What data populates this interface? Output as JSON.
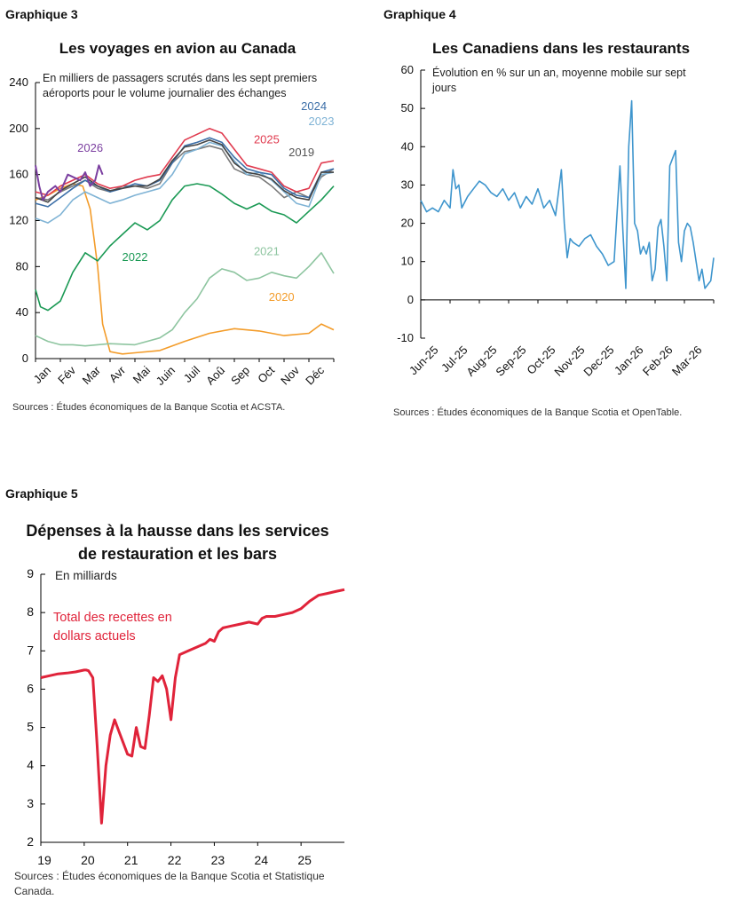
{
  "chart_data": [
    {
      "id": "g3",
      "type": "line",
      "figure_label": "Graphique 3",
      "title": "Les voyages en avion au Canada",
      "subtitle": "En milliers de passagers scrutés dans les sept premiers aéroports pour le volume journalier des échanges",
      "source": "Sources : Études économiques de la Banque Scotia et ACSTA.",
      "ylim": [
        0,
        240
      ],
      "yticks": [
        "0",
        "40",
        "80",
        "120",
        "160",
        "200",
        "240"
      ],
      "xlim": [
        0,
        12
      ],
      "xticks": [
        "Jan",
        "Fév",
        "Mar",
        "Avr",
        "Mai",
        "Juin",
        "Juil",
        "Aoû",
        "Sep",
        "Oct",
        "Nov",
        "Déc"
      ],
      "series": [
        {
          "name": "2020",
          "color": "#F39C2A",
          "x": [
            0,
            0.5,
            1,
            1.5,
            1.9,
            2.2,
            2.5,
            2.7,
            3,
            3.5,
            4,
            5,
            6,
            7,
            8,
            9,
            10,
            11,
            11.5,
            12
          ],
          "values": [
            138,
            142,
            148,
            152,
            150,
            130,
            80,
            30,
            6,
            4,
            5,
            7,
            15,
            22,
            26,
            24,
            20,
            22,
            30,
            25
          ]
        },
        {
          "name": "2021",
          "color": "#8EC5A0",
          "x": [
            0,
            0.5,
            1,
            1.5,
            2,
            2.5,
            3,
            4,
            5,
            5.5,
            6,
            6.5,
            7,
            7.5,
            8,
            8.5,
            9,
            9.5,
            10,
            10.5,
            11,
            11.5,
            12
          ],
          "values": [
            20,
            15,
            12,
            12,
            11,
            12,
            13,
            12,
            18,
            25,
            40,
            52,
            70,
            78,
            75,
            68,
            70,
            75,
            72,
            70,
            80,
            92,
            74
          ]
        },
        {
          "name": "2022",
          "color": "#1A9954",
          "x": [
            0,
            0.2,
            0.5,
            1,
            1.5,
            2,
            2.5,
            3,
            3.5,
            4,
            4.5,
            5,
            5.5,
            6,
            6.5,
            7,
            7.5,
            8,
            8.5,
            9,
            9.5,
            10,
            10.5,
            11,
            11.5,
            12
          ],
          "values": [
            60,
            45,
            42,
            50,
            75,
            92,
            85,
            98,
            108,
            118,
            112,
            120,
            138,
            150,
            152,
            150,
            143,
            135,
            130,
            135,
            128,
            125,
            118,
            128,
            138,
            150
          ]
        },
        {
          "name": "2019",
          "color": "#7A7A7A",
          "x": [
            0,
            0.5,
            1,
            1.5,
            2,
            2.5,
            3,
            3.5,
            4,
            4.5,
            5,
            5.5,
            6,
            6.5,
            7,
            7.5,
            8,
            8.5,
            9,
            9.5,
            10,
            10.5,
            11,
            11.5,
            12
          ],
          "values": [
            140,
            138,
            145,
            150,
            155,
            148,
            145,
            150,
            150,
            148,
            152,
            170,
            180,
            182,
            185,
            182,
            165,
            160,
            158,
            150,
            140,
            145,
            140,
            158,
            165
          ]
        },
        {
          "name": "2023",
          "color": "#7FB3D5",
          "x": [
            0,
            0.5,
            1,
            1.5,
            2,
            2.5,
            3,
            3.5,
            4,
            4.5,
            5,
            5.5,
            6,
            6.5,
            7,
            7.5,
            8,
            8.5,
            9,
            9.5,
            10,
            10.5,
            11,
            11.5,
            12
          ],
          "values": [
            122,
            118,
            125,
            138,
            145,
            140,
            135,
            138,
            142,
            145,
            148,
            160,
            178,
            182,
            188,
            185,
            172,
            160,
            162,
            155,
            145,
            135,
            132,
            160,
            162
          ]
        },
        {
          "name": "2024",
          "color": "#3C6FA8",
          "x": [
            0,
            0.5,
            1,
            1.5,
            2,
            2.5,
            3,
            3.5,
            4,
            4.5,
            5,
            5.5,
            6,
            6.5,
            7,
            7.5,
            8,
            8.5,
            9,
            9.5,
            10,
            10.5,
            11,
            11.5,
            12
          ],
          "values": [
            135,
            132,
            140,
            148,
            155,
            150,
            145,
            148,
            152,
            150,
            155,
            170,
            185,
            188,
            192,
            188,
            175,
            165,
            162,
            160,
            148,
            142,
            140,
            162,
            165
          ]
        },
        {
          "name": "2025",
          "color": "#E03A4E",
          "x": [
            0,
            0.5,
            1,
            1.5,
            2,
            2.5,
            3,
            3.5,
            4,
            4.5,
            5,
            5.5,
            6,
            6.5,
            7,
            7.5,
            8,
            8.5,
            9,
            9.5,
            10,
            10.5,
            11,
            11.5,
            12
          ],
          "values": [
            145,
            142,
            150,
            155,
            160,
            152,
            148,
            150,
            155,
            158,
            160,
            175,
            190,
            195,
            200,
            196,
            182,
            168,
            165,
            162,
            150,
            145,
            148,
            170,
            172
          ]
        },
        {
          "name": "",
          "color": "#444444",
          "x": [
            0,
            0.5,
            1,
            1.5,
            2,
            2.5,
            3,
            3.5,
            4,
            4.5,
            5,
            5.5,
            6,
            6.5,
            7,
            7.5,
            8,
            8.5,
            9,
            9.5,
            10,
            10.5,
            11,
            11.5,
            12
          ],
          "values": [
            140,
            136,
            146,
            152,
            158,
            150,
            146,
            148,
            150,
            150,
            156,
            172,
            184,
            186,
            190,
            186,
            170,
            162,
            160,
            156,
            146,
            140,
            138,
            162,
            162
          ]
        },
        {
          "name": "2026",
          "color": "#7B3FA0",
          "x": [
            0,
            0.15,
            0.3,
            0.5,
            0.8,
            1,
            1.3,
            1.5,
            1.8,
            2,
            2.2,
            2.4,
            2.55,
            2.7
          ],
          "values": [
            168,
            150,
            138,
            145,
            150,
            145,
            160,
            158,
            155,
            162,
            150,
            155,
            168,
            160
          ]
        }
      ],
      "annotations": [
        {
          "text": "2026",
          "x": 2.2,
          "y": 180,
          "color": "#7B3FA0"
        },
        {
          "text": "2024",
          "x": 11.2,
          "y": 216,
          "color": "#3C6FA8"
        },
        {
          "text": "2023",
          "x": 11.5,
          "y": 203,
          "color": "#7FB3D5"
        },
        {
          "text": "2025",
          "x": 9.3,
          "y": 187,
          "color": "#E03A4E"
        },
        {
          "text": "2019",
          "x": 10.7,
          "y": 176,
          "color": "#555555"
        },
        {
          "text": "2022",
          "x": 4.0,
          "y": 85,
          "color": "#1A9954"
        },
        {
          "text": "2021",
          "x": 9.3,
          "y": 90,
          "color": "#8EC5A0"
        },
        {
          "text": "2020",
          "x": 9.9,
          "y": 50,
          "color": "#F39C2A"
        }
      ]
    },
    {
      "id": "g4",
      "type": "line",
      "figure_label": "Graphique 4",
      "title": "Les Canadiens dans les restaurants",
      "subtitle": "Évolution en % sur un an, moyenne mobile sur sept jours",
      "source": "Sources : Études économiques de la Banque Scotia et OpenTable.",
      "ylim": [
        -10,
        60
      ],
      "yticks": [
        "-10",
        "0",
        "10",
        "20",
        "30",
        "40",
        "50",
        "60"
      ],
      "xlim": [
        0,
        10
      ],
      "xticks": [
        "Jun-25",
        "Jul-25",
        "Aug-25",
        "Sep-25",
        "Oct-25",
        "Nov-25",
        "Dec-25",
        "Jan-26",
        "Feb-26",
        "Mar-26"
      ],
      "series": [
        {
          "name": "",
          "color": "#3E95CD",
          "x": [
            0,
            0.2,
            0.4,
            0.6,
            0.8,
            1.0,
            1.1,
            1.2,
            1.3,
            1.4,
            1.6,
            1.8,
            2.0,
            2.2,
            2.4,
            2.6,
            2.8,
            3.0,
            3.2,
            3.4,
            3.6,
            3.8,
            4.0,
            4.2,
            4.4,
            4.6,
            4.8,
            4.9,
            5.0,
            5.1,
            5.2,
            5.4,
            5.6,
            5.8,
            6.0,
            6.2,
            6.4,
            6.6,
            6.8,
            6.9,
            7.0,
            7.1,
            7.2,
            7.3,
            7.4,
            7.5,
            7.6,
            7.7,
            7.8,
            7.9,
            8.0,
            8.1,
            8.2,
            8.3,
            8.4,
            8.5,
            8.6,
            8.7,
            8.8,
            8.9,
            9.0,
            9.1,
            9.2,
            9.3,
            9.4,
            9.5,
            9.6,
            9.7,
            9.8,
            9.9,
            10
          ],
          "values": [
            26,
            23,
            24,
            23,
            26,
            24,
            34,
            29,
            30,
            24,
            27,
            29,
            31,
            30,
            28,
            27,
            29,
            26,
            28,
            24,
            27,
            25,
            29,
            24,
            26,
            22,
            34,
            20,
            11,
            16,
            15,
            14,
            16,
            17,
            14,
            12,
            9,
            10,
            35,
            18,
            3,
            40,
            52,
            20,
            18,
            12,
            14,
            12,
            15,
            5,
            8,
            19,
            21,
            14,
            5,
            35,
            37,
            39,
            15,
            10,
            18,
            20,
            19,
            15,
            10,
            5,
            8,
            3,
            4,
            5,
            11
          ]
        }
      ]
    },
    {
      "id": "g5",
      "type": "line",
      "figure_label": "Graphique 5",
      "title": "Dépenses à la hausse dans les services de restauration et les bars",
      "subtitle": "En milliards",
      "source": "Sources : Études économiques de la Banque Scotia et Statistique Canada.",
      "ylim": [
        2,
        9
      ],
      "yticks": [
        "2",
        "3",
        "4",
        "5",
        "6",
        "7",
        "8",
        "9"
      ],
      "xlim": [
        0,
        7
      ],
      "xticks": [
        "19",
        "20",
        "21",
        "22",
        "23",
        "24",
        "25"
      ],
      "series": [
        {
          "name": "Total des recettes en dollars actuels",
          "color": "#E0233A",
          "x": [
            0,
            0.2,
            0.4,
            0.6,
            0.8,
            1.0,
            1.05,
            1.1,
            1.2,
            1.3,
            1.4,
            1.5,
            1.6,
            1.7,
            1.8,
            1.9,
            2.0,
            2.1,
            2.2,
            2.3,
            2.4,
            2.5,
            2.6,
            2.7,
            2.8,
            2.9,
            3.0,
            3.1,
            3.2,
            3.4,
            3.6,
            3.8,
            3.9,
            4.0,
            4.1,
            4.2,
            4.4,
            4.6,
            4.8,
            5.0,
            5.1,
            5.2,
            5.4,
            5.6,
            5.8,
            6.0,
            6.2,
            6.4,
            6.6,
            6.8,
            7.0
          ],
          "values": [
            6.3,
            6.35,
            6.4,
            6.42,
            6.45,
            6.5,
            6.5,
            6.48,
            6.3,
            4.5,
            2.5,
            4.0,
            4.8,
            5.2,
            4.9,
            4.6,
            4.3,
            4.25,
            5.0,
            4.5,
            4.45,
            5.3,
            6.3,
            6.2,
            6.35,
            6.0,
            5.2,
            6.3,
            6.9,
            7.0,
            7.1,
            7.2,
            7.3,
            7.25,
            7.5,
            7.6,
            7.65,
            7.7,
            7.75,
            7.7,
            7.85,
            7.9,
            7.9,
            7.95,
            8.0,
            8.1,
            8.3,
            8.45,
            8.5,
            8.55,
            8.6
          ]
        }
      ]
    }
  ]
}
